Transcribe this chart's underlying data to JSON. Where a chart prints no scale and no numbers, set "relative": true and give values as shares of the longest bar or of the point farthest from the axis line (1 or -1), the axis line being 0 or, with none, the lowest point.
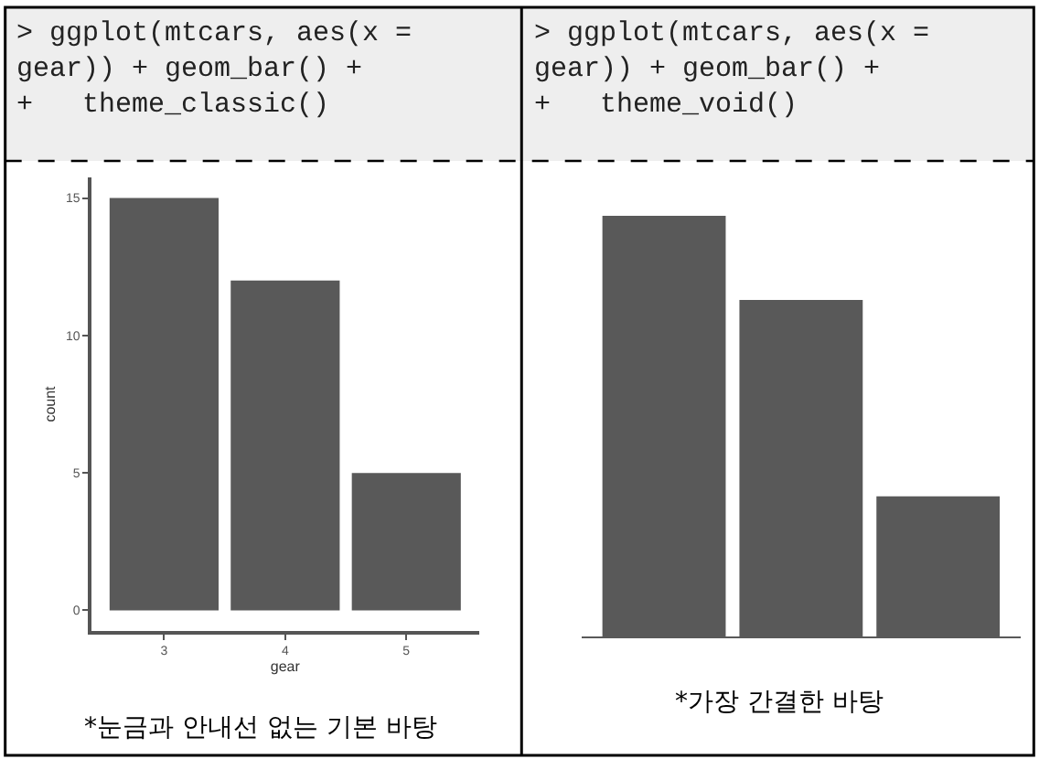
{
  "chart_data": [
    {
      "type": "bar",
      "title": "> ggplot(mtcars, aes(x =\ngear)) + geom_bar() +\n+   theme_classic()",
      "xlabel": "gear",
      "ylabel": "count",
      "categories": [
        "3",
        "4",
        "5"
      ],
      "values": [
        15,
        12,
        5
      ],
      "color": "#595959",
      "ylim": [
        -0.75,
        15.75
      ],
      "yticks": [
        0,
        5,
        10,
        15
      ],
      "annotations": [
        "*눈금과 안내선 없는 기본 바탕"
      ]
    },
    {
      "type": "bar",
      "title": "> ggplot(mtcars, aes(x =\ngear)) + geom_bar() +\n+   theme_void()",
      "relative": true,
      "categories": [
        null,
        null,
        null
      ],
      "values": [
        1,
        0.8,
        0.333
      ],
      "color": "#595959",
      "annotations": [
        "*가장 간결한 바탕"
      ]
    }
  ]
}
